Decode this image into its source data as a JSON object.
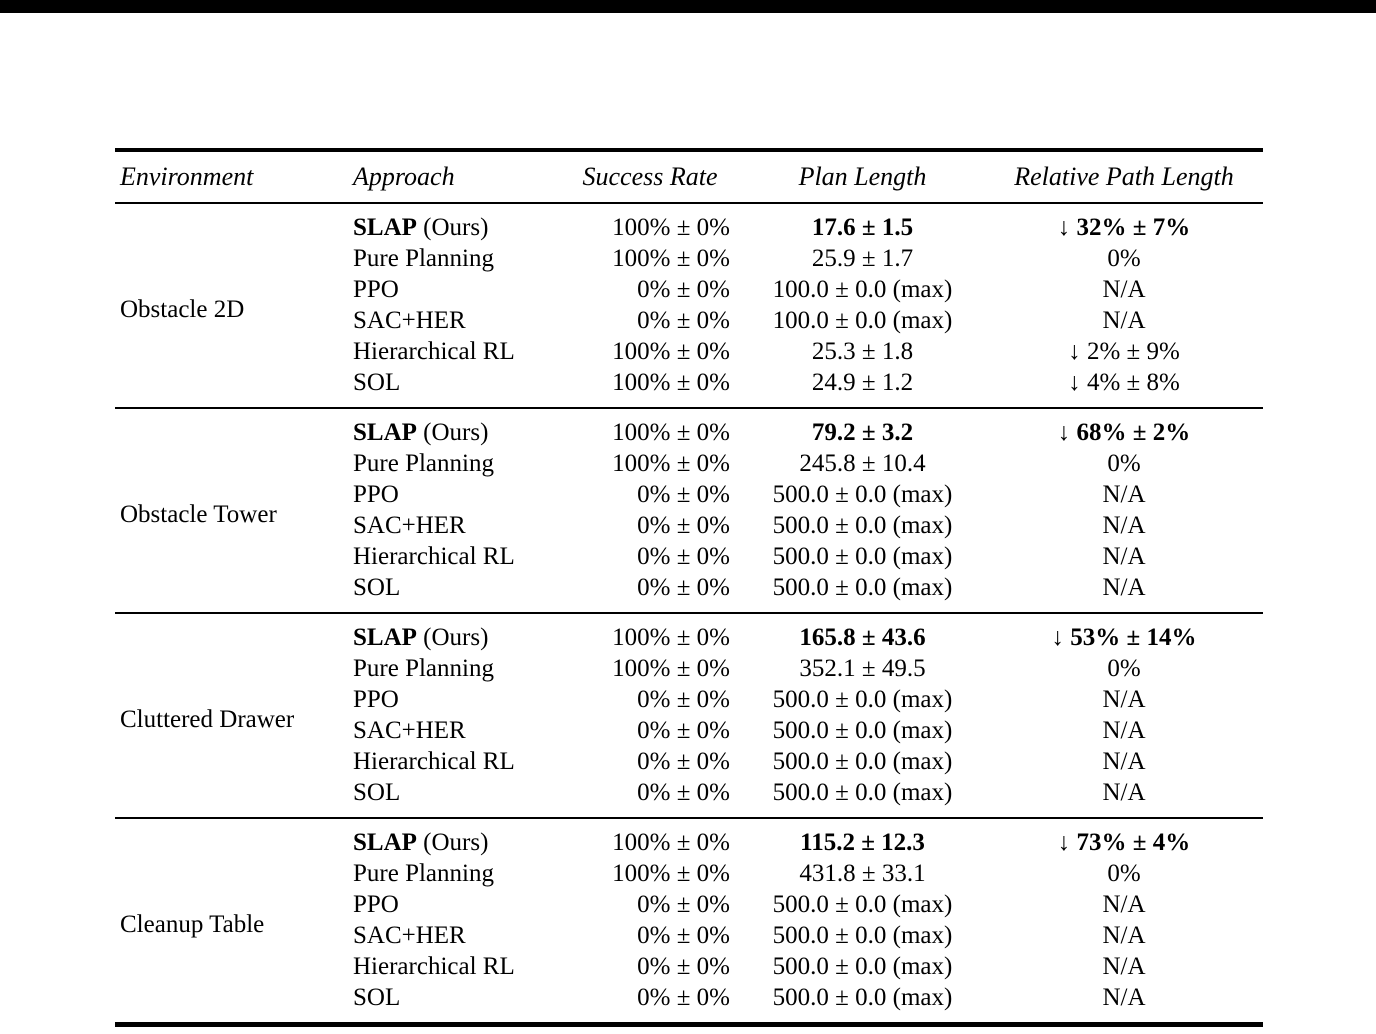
{
  "page": {
    "background_color": "#ffffff",
    "top_bar_color": "#000000"
  },
  "table": {
    "columns": [
      "Environment",
      "Approach",
      "Success Rate",
      "Plan Length",
      "Relative Path Length"
    ],
    "sections": [
      {
        "environment": "Obstacle 2D",
        "rows": [
          {
            "approach_main": "SLAP",
            "approach_suffix": " (Ours)",
            "success_rate": "100% ± 0%",
            "plan_length": "17.6 ± 1.5",
            "relative_path_length": "↓ 32% ± 7%",
            "emphasis": true
          },
          {
            "approach_main": "Pure Planning",
            "approach_suffix": "",
            "success_rate": "100% ± 0%",
            "plan_length": "25.9 ± 1.7",
            "relative_path_length": "0%",
            "emphasis": false
          },
          {
            "approach_main": "PPO",
            "approach_suffix": "",
            "success_rate": "0% ± 0%",
            "plan_length": "100.0 ± 0.0 (max)",
            "relative_path_length": "N/A",
            "emphasis": false
          },
          {
            "approach_main": "SAC+HER",
            "approach_suffix": "",
            "success_rate": "0% ± 0%",
            "plan_length": "100.0 ± 0.0 (max)",
            "relative_path_length": "N/A",
            "emphasis": false
          },
          {
            "approach_main": "Hierarchical RL",
            "approach_suffix": "",
            "success_rate": "100% ± 0%",
            "plan_length": "25.3 ± 1.8",
            "relative_path_length": "↓ 2% ± 9%",
            "emphasis": false
          },
          {
            "approach_main": "SOL",
            "approach_suffix": "",
            "success_rate": "100% ± 0%",
            "plan_length": "24.9 ± 1.2",
            "relative_path_length": "↓ 4% ± 8%",
            "emphasis": false
          }
        ]
      },
      {
        "environment": "Obstacle Tower",
        "rows": [
          {
            "approach_main": "SLAP",
            "approach_suffix": " (Ours)",
            "success_rate": "100% ± 0%",
            "plan_length": "79.2 ± 3.2",
            "relative_path_length": "↓ 68% ± 2%",
            "emphasis": true
          },
          {
            "approach_main": "Pure Planning",
            "approach_suffix": "",
            "success_rate": "100% ± 0%",
            "plan_length": "245.8 ± 10.4",
            "relative_path_length": "0%",
            "emphasis": false
          },
          {
            "approach_main": "PPO",
            "approach_suffix": "",
            "success_rate": "0% ± 0%",
            "plan_length": "500.0 ± 0.0 (max)",
            "relative_path_length": "N/A",
            "emphasis": false
          },
          {
            "approach_main": "SAC+HER",
            "approach_suffix": "",
            "success_rate": "0% ± 0%",
            "plan_length": "500.0 ± 0.0 (max)",
            "relative_path_length": "N/A",
            "emphasis": false
          },
          {
            "approach_main": "Hierarchical RL",
            "approach_suffix": "",
            "success_rate": "0% ± 0%",
            "plan_length": "500.0 ± 0.0 (max)",
            "relative_path_length": "N/A",
            "emphasis": false
          },
          {
            "approach_main": "SOL",
            "approach_suffix": "",
            "success_rate": "0% ± 0%",
            "plan_length": "500.0 ± 0.0 (max)",
            "relative_path_length": "N/A",
            "emphasis": false
          }
        ]
      },
      {
        "environment": "Cluttered Drawer",
        "rows": [
          {
            "approach_main": "SLAP",
            "approach_suffix": " (Ours)",
            "success_rate": "100% ± 0%",
            "plan_length": "165.8 ± 43.6",
            "relative_path_length": "↓ 53% ± 14%",
            "emphasis": true
          },
          {
            "approach_main": "Pure Planning",
            "approach_suffix": "",
            "success_rate": "100% ± 0%",
            "plan_length": "352.1 ± 49.5",
            "relative_path_length": "0%",
            "emphasis": false
          },
          {
            "approach_main": "PPO",
            "approach_suffix": "",
            "success_rate": "0% ± 0%",
            "plan_length": "500.0 ± 0.0 (max)",
            "relative_path_length": "N/A",
            "emphasis": false
          },
          {
            "approach_main": "SAC+HER",
            "approach_suffix": "",
            "success_rate": "0% ± 0%",
            "plan_length": "500.0 ± 0.0 (max)",
            "relative_path_length": "N/A",
            "emphasis": false
          },
          {
            "approach_main": "Hierarchical RL",
            "approach_suffix": "",
            "success_rate": "0% ± 0%",
            "plan_length": "500.0 ± 0.0 (max)",
            "relative_path_length": "N/A",
            "emphasis": false
          },
          {
            "approach_main": "SOL",
            "approach_suffix": "",
            "success_rate": "0% ± 0%",
            "plan_length": "500.0 ± 0.0 (max)",
            "relative_path_length": "N/A",
            "emphasis": false
          }
        ]
      },
      {
        "environment": "Cleanup Table",
        "rows": [
          {
            "approach_main": "SLAP",
            "approach_suffix": " (Ours)",
            "success_rate": "100% ± 0%",
            "plan_length": "115.2 ± 12.3",
            "relative_path_length": "↓ 73% ± 4%",
            "emphasis": true
          },
          {
            "approach_main": "Pure Planning",
            "approach_suffix": "",
            "success_rate": "100% ± 0%",
            "plan_length": "431.8 ± 33.1",
            "relative_path_length": "0%",
            "emphasis": false
          },
          {
            "approach_main": "PPO",
            "approach_suffix": "",
            "success_rate": "0% ± 0%",
            "plan_length": "500.0 ± 0.0 (max)",
            "relative_path_length": "N/A",
            "emphasis": false
          },
          {
            "approach_main": "SAC+HER",
            "approach_suffix": "",
            "success_rate": "0% ± 0%",
            "plan_length": "500.0 ± 0.0 (max)",
            "relative_path_length": "N/A",
            "emphasis": false
          },
          {
            "approach_main": "Hierarchical RL",
            "approach_suffix": "",
            "success_rate": "0% ± 0%",
            "plan_length": "500.0 ± 0.0 (max)",
            "relative_path_length": "N/A",
            "emphasis": false
          },
          {
            "approach_main": "SOL",
            "approach_suffix": "",
            "success_rate": "0% ± 0%",
            "plan_length": "500.0 ± 0.0 (max)",
            "relative_path_length": "N/A",
            "emphasis": false
          }
        ]
      }
    ]
  }
}
